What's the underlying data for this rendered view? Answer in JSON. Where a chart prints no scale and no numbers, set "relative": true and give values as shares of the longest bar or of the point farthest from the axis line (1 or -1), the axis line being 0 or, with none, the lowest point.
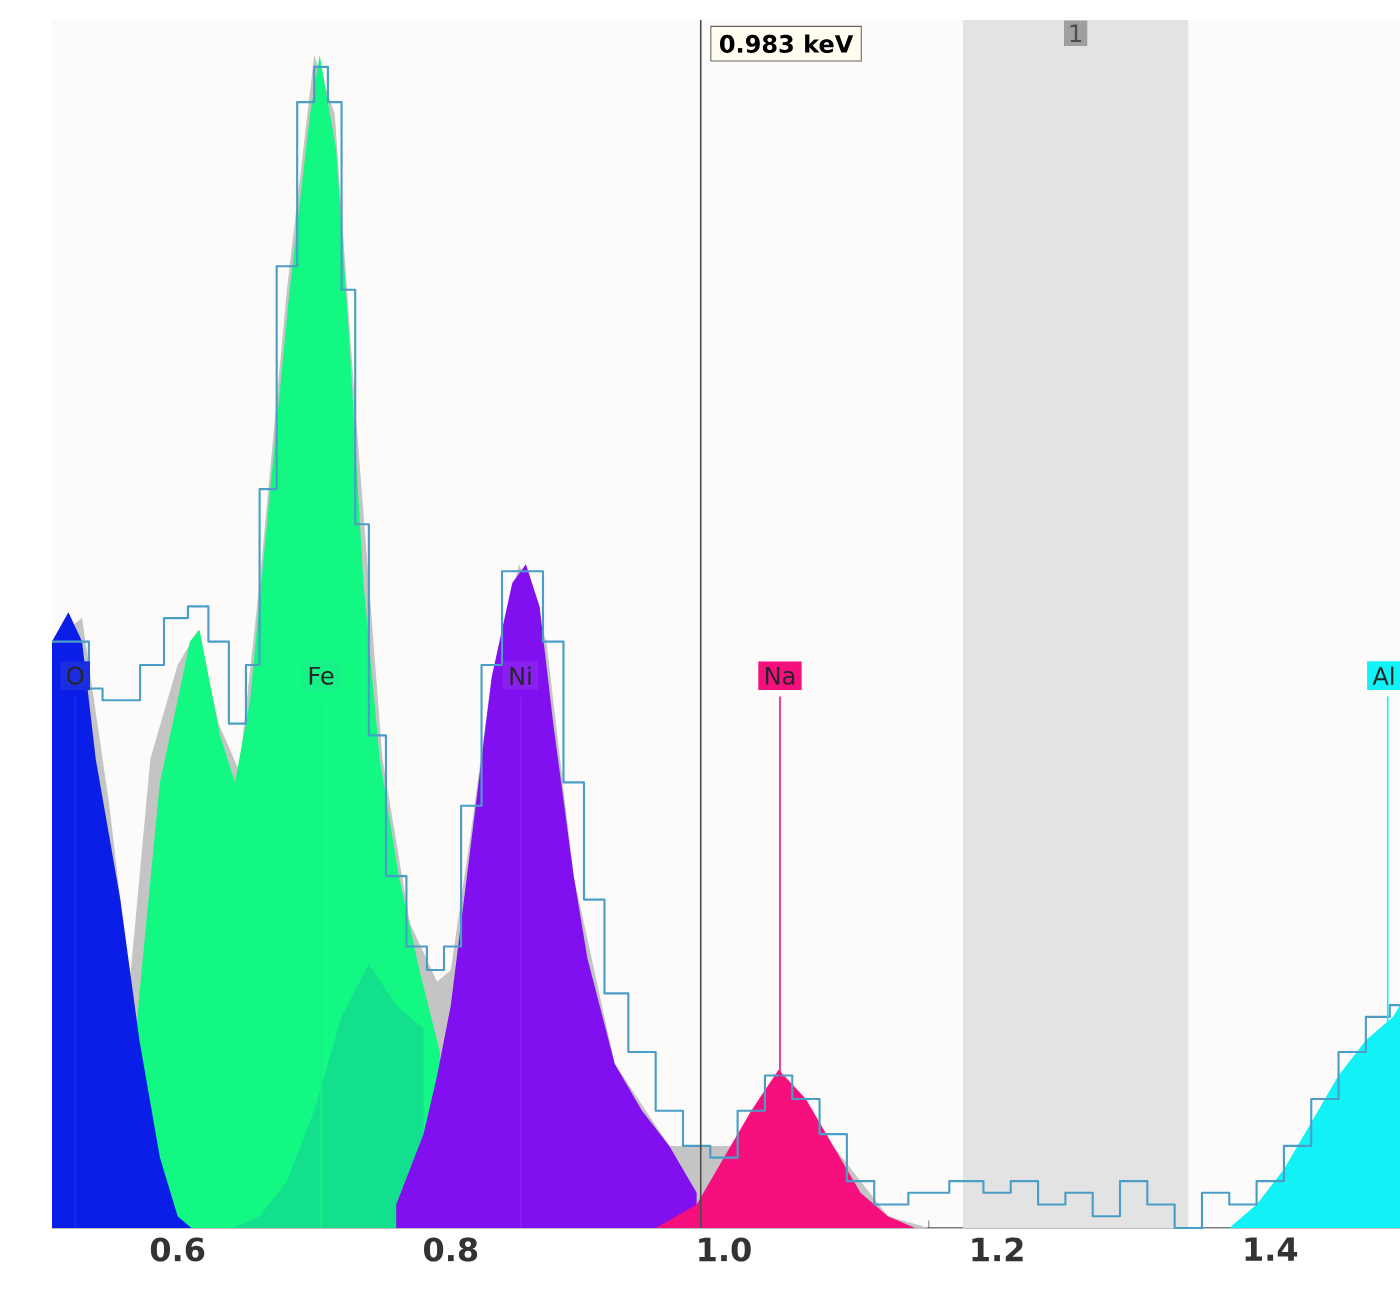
{
  "chart_data": {
    "type": "area",
    "relative": true,
    "tick_labels": "x",
    "xlim": [
      0.508,
      1.495
    ],
    "xticks": [
      0.6,
      0.8,
      {
        "value": 1,
        "label": "1.0"
      },
      1.2,
      1.4
    ],
    "series": [
      {
        "color": "#c4c4c4",
        "x": [
          0.508,
          0.53,
          0.55,
          0.565,
          0.58,
          0.6,
          0.615,
          0.63,
          0.645,
          0.66,
          0.68,
          0.7,
          0.715,
          0.73,
          0.75,
          0.77,
          0.79,
          0.8,
          0.815,
          0.83,
          0.85,
          0.87,
          0.89,
          0.92,
          0.96,
          1.0,
          1.04,
          1.08,
          1.12,
          1.15
        ],
        "values": [
          0.5,
          0.52,
          0.36,
          0.21,
          0.4,
          0.48,
          0.51,
          0.43,
          0.39,
          0.55,
          0.8,
          1.0,
          0.95,
          0.7,
          0.4,
          0.26,
          0.21,
          0.22,
          0.34,
          0.47,
          0.566,
          0.5,
          0.3,
          0.14,
          0.07,
          0.07,
          null,
          0.07,
          0.01,
          0
        ]
      },
      {
        "color": "#0a1ee8",
        "x": [
          0.508,
          0.52,
          0.53,
          0.54,
          0.558,
          0.572,
          0.587,
          0.6,
          0.61
        ],
        "values": [
          0.5,
          0.525,
          0.5,
          0.4,
          0.28,
          0.16,
          0.06,
          0.01,
          0
        ]
      },
      {
        "color": "#12f882",
        "x": [
          0.558,
          0.572,
          0.587,
          0.6,
          0.609,
          0.616,
          0.631,
          0.642,
          0.653,
          0.667,
          0.682,
          0.697,
          0.704,
          0.716,
          0.726,
          0.736,
          0.748,
          0.762,
          0.777,
          0.792
        ],
        "values": [
          0,
          0.2,
          0.38,
          0.45,
          0.5,
          0.51,
          0.42,
          0.38,
          0.45,
          0.62,
          0.8,
          0.95,
          1.0,
          0.92,
          0.75,
          0.55,
          0.4,
          0.3,
          0.22,
          0.15
        ]
      },
      {
        "color": "#12e08c",
        "x": [
          0.64,
          0.66,
          0.68,
          0.7,
          0.72,
          0.74,
          0.76,
          0.78
        ],
        "values": [
          0,
          0.01,
          0.04,
          0.1,
          0.18,
          0.225,
          0.19,
          0.17
        ]
      },
      {
        "color": "#8010f0",
        "x": [
          0.76,
          0.78,
          0.79,
          0.8,
          0.815,
          0.83,
          0.845,
          0.855,
          0.865,
          0.875,
          0.89,
          0.9,
          0.92,
          0.94,
          0.96,
          0.98
        ],
        "values": [
          0.02,
          0.08,
          0.13,
          0.19,
          0.33,
          0.47,
          0.55,
          0.566,
          0.53,
          0.43,
          0.3,
          0.23,
          0.14,
          0.1,
          0.07,
          0.03
        ]
      },
      {
        "color": "#f5107e",
        "x": [
          0.95,
          0.98,
          1.0,
          1.02,
          1.04,
          1.06,
          1.08,
          1.1,
          1.12,
          1.14
        ],
        "values": [
          0,
          0.02,
          0.06,
          0.1,
          0.135,
          0.11,
          0.07,
          0.03,
          0.01,
          0
        ]
      },
      {
        "color": "#10f2f5",
        "x": [
          1.37,
          1.39,
          1.41,
          1.43,
          1.45,
          1.47,
          1.49,
          1.495
        ],
        "values": [
          0,
          0.02,
          0.05,
          0.09,
          0.13,
          0.16,
          0.18,
          0.19
        ]
      },
      {
        "type": "step",
        "color": "#4a9ec6",
        "x": [
          0.508,
          0.53,
          0.54,
          0.55,
          0.565,
          0.58,
          0.6,
          0.615,
          0.63,
          0.645,
          0.655,
          0.665,
          0.68,
          0.695,
          0.705,
          0.715,
          0.725,
          0.735,
          0.745,
          0.76,
          0.775,
          0.79,
          0.8,
          0.815,
          0.83,
          0.845,
          0.86,
          0.875,
          0.89,
          0.905,
          0.92,
          0.94,
          0.96,
          0.98,
          1.0,
          1.02,
          1.04,
          1.06,
          1.08,
          1.1,
          1.12,
          1.15,
          1.18,
          1.2,
          1.22,
          1.24,
          1.26,
          1.28,
          1.3,
          1.32,
          1.34,
          1.36,
          1.38,
          1.4,
          1.42,
          1.44,
          1.46,
          1.48,
          1.495
        ],
        "values": [
          0.5,
          0.5,
          0.46,
          0.45,
          0.45,
          0.48,
          0.52,
          0.53,
          0.5,
          0.43,
          0.48,
          0.63,
          0.82,
          0.96,
          0.99,
          0.96,
          0.8,
          0.6,
          0.42,
          0.3,
          0.24,
          0.22,
          0.24,
          0.36,
          0.48,
          0.56,
          0.56,
          0.5,
          0.38,
          0.28,
          0.2,
          0.15,
          0.1,
          0.07,
          0.06,
          0.1,
          0.13,
          0.11,
          0.08,
          0.04,
          0.02,
          0.03,
          0.04,
          0.03,
          0.04,
          0.02,
          0.03,
          0.01,
          0.04,
          0.02,
          0,
          0.03,
          0.02,
          0.04,
          0.07,
          0.11,
          0.15,
          0.18,
          0.19
        ]
      }
    ],
    "ref_lines": [
      {
        "axis": "x",
        "value": 0.525,
        "label": "O",
        "color": "#1a2ee0"
      },
      {
        "axis": "x",
        "value": 0.705,
        "label": "Fe",
        "color": "#18f088"
      },
      {
        "axis": "x",
        "value": 0.851,
        "label": "Ni",
        "color": "#8a20f0"
      },
      {
        "axis": "x",
        "value": 1.041,
        "label": "Na",
        "color": "#f5107e"
      },
      {
        "axis": "x",
        "value": 1.486,
        "label": "Al",
        "color": "#10f2f5"
      },
      {
        "axis": "x",
        "value": 0.983,
        "label": "0.983 keV"
      }
    ],
    "bands": [
      {
        "axis": "x",
        "from": 1.175,
        "to": 1.34,
        "label": "1",
        "color": "#e3e3e3"
      }
    ]
  }
}
